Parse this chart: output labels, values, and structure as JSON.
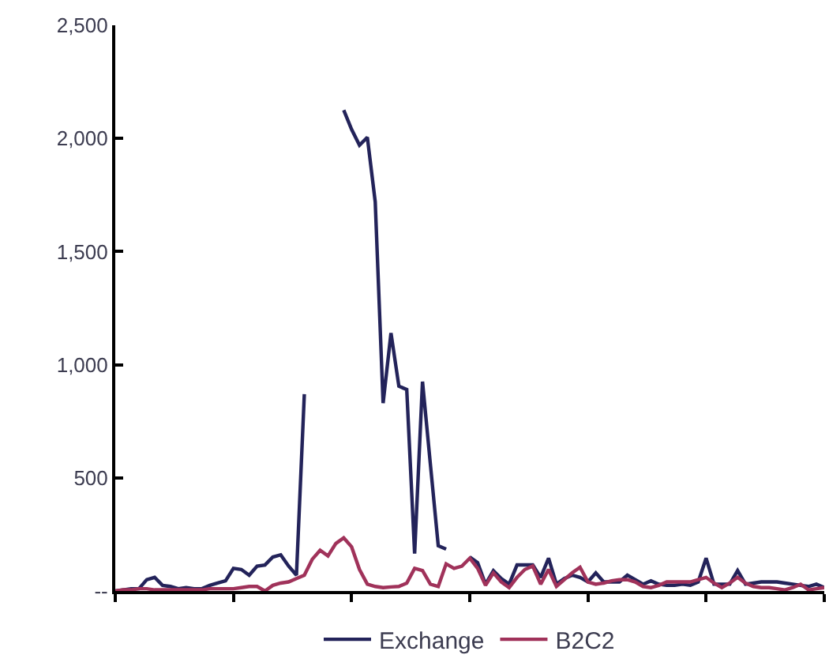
{
  "chart_data": {
    "type": "line",
    "categories": [
      null,
      null,
      null,
      null,
      null,
      null,
      null,
      null,
      null,
      null,
      null,
      null,
      null,
      null,
      null,
      null,
      null,
      null,
      null,
      null,
      null,
      null,
      null,
      null,
      null,
      null,
      null,
      null,
      null,
      null,
      null,
      null,
      null,
      null,
      null,
      null,
      null,
      null,
      null,
      null,
      null,
      null,
      null,
      null,
      null,
      null,
      null,
      null,
      null,
      null,
      null,
      null,
      null,
      null,
      null,
      null,
      null,
      null,
      null,
      null,
      null,
      null,
      null,
      null,
      null,
      null,
      null,
      null,
      null,
      null,
      null,
      null,
      null,
      null,
      null,
      null,
      null,
      null,
      null,
      null,
      null,
      null,
      null,
      null,
      null,
      null,
      null,
      null,
      null,
      null,
      null
    ],
    "series": [
      {
        "name": "Exchange",
        "color": "#23235a",
        "values": [
          0,
          5,
          10,
          10,
          50,
          60,
          25,
          20,
          10,
          15,
          10,
          10,
          25,
          35,
          45,
          100,
          95,
          70,
          110,
          115,
          150,
          160,
          110,
          70,
          870,
          null,
          null,
          null,
          null,
          2125,
          2040,
          1970,
          2005,
          1720,
          830,
          1140,
          905,
          890,
          165,
          925,
          560,
          200,
          185,
          null,
          null,
          150,
          125,
          30,
          90,
          55,
          30,
          115,
          115,
          115,
          60,
          145,
          30,
          55,
          70,
          60,
          40,
          80,
          40,
          40,
          40,
          70,
          50,
          30,
          45,
          30,
          25,
          25,
          30,
          25,
          40,
          145,
          30,
          30,
          30,
          90,
          30,
          35,
          40,
          40,
          40,
          35,
          30,
          25,
          20,
          30,
          15
        ]
      },
      {
        "name": "B2C2",
        "color": "#a0325a",
        "values": [
          0,
          5,
          5,
          10,
          10,
          5,
          5,
          5,
          5,
          5,
          5,
          5,
          10,
          10,
          10,
          10,
          15,
          20,
          20,
          0,
          25,
          35,
          40,
          55,
          70,
          140,
          180,
          155,
          210,
          235,
          195,
          95,
          30,
          20,
          15,
          18,
          20,
          35,
          100,
          90,
          30,
          20,
          120,
          100,
          110,
          145,
          100,
          25,
          80,
          40,
          15,
          60,
          95,
          110,
          30,
          95,
          20,
          50,
          80,
          105,
          40,
          30,
          35,
          45,
          50,
          50,
          40,
          20,
          15,
          25,
          40,
          40,
          40,
          40,
          50,
          60,
          35,
          15,
          35,
          60,
          35,
          20,
          15,
          15,
          10,
          5,
          15,
          30,
          5,
          10,
          15
        ]
      }
    ],
    "ylim": [
      0,
      2500
    ],
    "yticks": [
      {
        "value": 0,
        "label": "--"
      },
      {
        "value": 500,
        "label": "500"
      },
      {
        "value": 1000,
        "label": "1,000"
      },
      {
        "value": 1500,
        "label": "1,500"
      },
      {
        "value": 2000,
        "label": "2,000"
      },
      {
        "value": 2500,
        "label": "2,500"
      }
    ],
    "tick_labels": "y",
    "legend": "bottom",
    "marker": "none",
    "line_style": "solid"
  }
}
